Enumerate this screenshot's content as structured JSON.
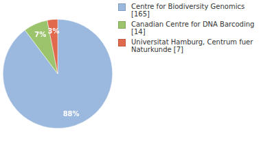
{
  "chart_data": {
    "type": "pie",
    "categories": [
      "Centre for Biodiversity Genomics [165]",
      "Canadian Centre for DNA Barcoding [14]",
      "Universitat Hamburg, Centrum fuer Naturkunde [7]"
    ],
    "values": [
      88,
      7,
      3
    ],
    "value_labels": [
      "88%",
      "7%",
      "3%"
    ],
    "colors": [
      "#9bb8de",
      "#9cc46d",
      "#e0694e"
    ],
    "data_labels": true,
    "legend": "right"
  }
}
